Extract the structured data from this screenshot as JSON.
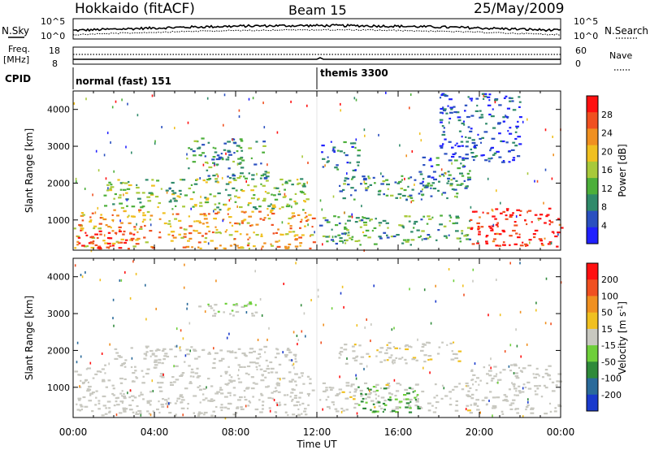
{
  "header": {
    "station": "Hokkaido (fitACF)",
    "beam": "Beam 15",
    "date": "25/May/2009"
  },
  "strip": {
    "nsky_label": "N.Sky",
    "nsky_ticks": [
      "10^5",
      "10^0"
    ],
    "nsearch_label": "N.Search",
    "freq_label_1": "Freq.",
    "freq_label_2": "[MHz]",
    "freq_ticks": [
      "18",
      "8"
    ],
    "nave_label": "Nave",
    "nave_ticks": [
      "60",
      "0"
    ],
    "cpid_label": "CPID",
    "cpid_segments": [
      {
        "name": "normal (fast) 151",
        "start_hour": 0
      },
      {
        "name": "themis 3300",
        "start_hour": 12.0
      }
    ]
  },
  "chart_data": [
    {
      "type": "heatmap",
      "title": "",
      "xlabel": "",
      "ylabel": "Slant Range [km]",
      "x_range_hours": [
        0,
        24
      ],
      "ylim": [
        180,
        4500
      ],
      "yticks": [
        "1000",
        "2000",
        "3000",
        "4000"
      ],
      "colorbar_label": "Power [dB]",
      "colorbar_ticks": [
        "28",
        "24",
        "20",
        "16",
        "12",
        "8",
        "4"
      ],
      "colorbar_colors": [
        "#2020ff",
        "#2a50c0",
        "#2f8a6a",
        "#4caf3a",
        "#a8c93a",
        "#f0c020",
        "#f09020",
        "#f05020",
        "#ff1010"
      ],
      "colorbar_range": [
        0,
        32
      ],
      "echo_bands": [
        {
          "t0": 0.0,
          "t1": 11.8,
          "r0": 200,
          "r1": 1250,
          "power": 22
        },
        {
          "t0": 0.2,
          "t1": 3.0,
          "r0": 200,
          "r1": 700,
          "power": 30
        },
        {
          "t0": 1.5,
          "t1": 11.5,
          "r0": 1250,
          "r1": 2100,
          "power": 14
        },
        {
          "t0": 5.5,
          "t1": 9.5,
          "r0": 2100,
          "r1": 3200,
          "power": 10
        },
        {
          "t0": 12.1,
          "t1": 19.5,
          "r0": 300,
          "r1": 1100,
          "power": 12
        },
        {
          "t0": 13.0,
          "t1": 19.0,
          "r0": 1500,
          "r1": 2200,
          "power": 10
        },
        {
          "t0": 12.2,
          "t1": 14.0,
          "r0": 2300,
          "r1": 3100,
          "power": 6
        },
        {
          "t0": 17.0,
          "t1": 19.5,
          "r0": 1800,
          "r1": 2700,
          "power": 8
        },
        {
          "t0": 19.5,
          "t1": 24.0,
          "r0": 250,
          "r1": 1300,
          "power": 30
        },
        {
          "t0": 18.0,
          "t1": 22.0,
          "r0": 2500,
          "r1": 4400,
          "power": 5
        }
      ]
    },
    {
      "type": "heatmap",
      "title": "",
      "xlabel": "Time UT",
      "ylabel": "Slant Range [km]",
      "x_range_hours": [
        0,
        24
      ],
      "xticks": [
        "00:00",
        "04:00",
        "08:00",
        "12:00",
        "16:00",
        "20:00",
        "00:00"
      ],
      "ylim": [
        180,
        4500
      ],
      "yticks": [
        "1000",
        "2000",
        "3000",
        "4000"
      ],
      "colorbar_label": "Velocity [m s^-1]",
      "colorbar_ticks": [
        "200",
        "100",
        "50",
        "15",
        "-15",
        "-50",
        "-100",
        "-200"
      ],
      "colorbar_colors": [
        "#1a3acc",
        "#2a6a9a",
        "#2f8a3a",
        "#6ecf3a",
        "#c8c8c0",
        "#f0c020",
        "#f09020",
        "#f05020",
        "#ff1010"
      ],
      "colorbar_range": [
        -250,
        250
      ],
      "echo_bands": [
        {
          "t0": 0.0,
          "t1": 11.8,
          "r0": 200,
          "r1": 1600,
          "velocity": 0
        },
        {
          "t0": 2.0,
          "t1": 11.0,
          "r0": 1600,
          "r1": 2100,
          "velocity": 0
        },
        {
          "t0": 6.0,
          "t1": 9.0,
          "r0": 2900,
          "r1": 3300,
          "velocity": -30
        },
        {
          "t0": 12.1,
          "t1": 19.5,
          "r0": 300,
          "r1": 1100,
          "velocity": 5
        },
        {
          "t0": 14.0,
          "t1": 17.0,
          "r0": 300,
          "r1": 1000,
          "velocity": -80
        },
        {
          "t0": 13.0,
          "t1": 19.0,
          "r0": 1600,
          "r1": 2200,
          "velocity": 10
        },
        {
          "t0": 19.5,
          "t1": 24.0,
          "r0": 250,
          "r1": 1600,
          "velocity": 0
        }
      ]
    }
  ]
}
